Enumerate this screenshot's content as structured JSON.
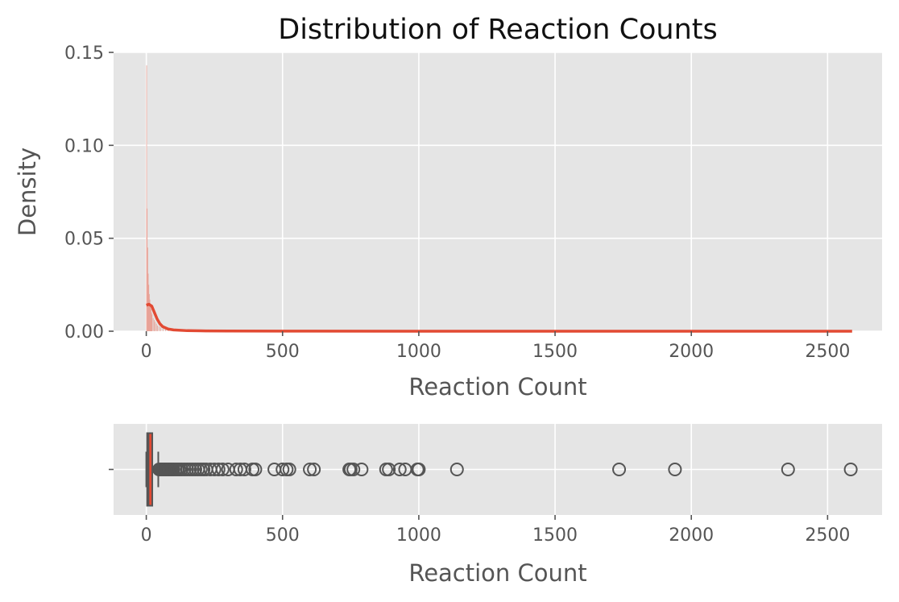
{
  "chart_data": [
    {
      "type": "histogram",
      "title": "Distribution of Reaction Counts",
      "xlabel": "Reaction Count",
      "ylabel": "Density",
      "xlim": [
        -120,
        2700
      ],
      "ylim": [
        0,
        0.15
      ],
      "xticks": [
        "0",
        "500",
        "1000",
        "1500",
        "2000",
        "2500"
      ],
      "yticks": [
        "0.00",
        "0.05",
        "0.10",
        "0.15"
      ],
      "grid": true,
      "bar_color": "#e8998d",
      "kde_color": "#e24a33",
      "histogram": {
        "bin_left_edges": [
          0,
          2,
          4,
          6,
          8,
          10,
          12,
          14,
          16,
          18,
          20,
          24,
          28,
          32,
          36,
          40,
          46,
          52,
          60,
          70,
          80
        ],
        "bin_width": 2,
        "densities": [
          0.143,
          0.066,
          0.045,
          0.031,
          0.025,
          0.02,
          0.017,
          0.014,
          0.012,
          0.01,
          0.009,
          0.007,
          0.006,
          0.005,
          0.004,
          0.003,
          0.0025,
          0.002,
          0.0015,
          0.001,
          0.0008
        ]
      },
      "kde": {
        "x": [
          0,
          10,
          20,
          30,
          40,
          50,
          60,
          80,
          100,
          150,
          200,
          300,
          500,
          1000,
          1500,
          2000,
          2590
        ],
        "y": [
          0.014,
          0.0145,
          0.0135,
          0.01,
          0.0065,
          0.004,
          0.0025,
          0.0012,
          0.0007,
          0.0003,
          0.0002,
          0.0001,
          5e-05,
          2e-05,
          1e-05,
          1e-05,
          0
        ]
      }
    },
    {
      "type": "boxplot",
      "xlabel": "Reaction Count",
      "ylabel": "",
      "xlim": [
        -120,
        2700
      ],
      "xticks": [
        "0",
        "500",
        "1000",
        "1500",
        "2000",
        "2500"
      ],
      "grid": true,
      "box_color": "#e24a33",
      "edge_color": "#555555",
      "min": 0,
      "q1": 3,
      "median": 8,
      "q3": 22,
      "whisker_high": 44,
      "outliers": [
        47,
        50,
        55,
        60,
        65,
        70,
        75,
        80,
        85,
        90,
        95,
        100,
        108,
        115,
        122,
        130,
        140,
        150,
        160,
        170,
        180,
        190,
        200,
        210,
        220,
        235,
        250,
        265,
        280,
        300,
        330,
        345,
        360,
        390,
        400,
        470,
        500,
        515,
        525,
        600,
        615,
        745,
        750,
        760,
        790,
        880,
        890,
        930,
        950,
        995,
        1000,
        1140,
        1735,
        1940,
        2355,
        2585
      ]
    }
  ]
}
